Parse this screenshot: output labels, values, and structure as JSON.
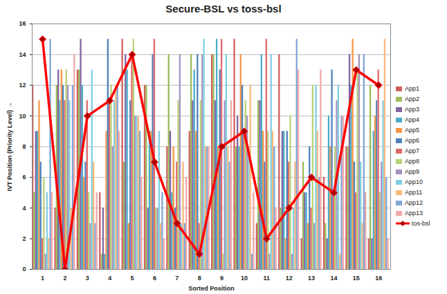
{
  "chart_data": {
    "type": "bar",
    "title": "Secure-BSL vs toss-bsl",
    "x_label": "Sorted Position",
    "y_label": "IVT Position (Priority Level)",
    "categories": [
      "1",
      "2",
      "3",
      "4",
      "5",
      "6",
      "7",
      "8",
      "9",
      "10",
      "11",
      "12",
      "13",
      "14",
      "15",
      "16"
    ],
    "ylim": [
      0,
      16
    ],
    "yticks": [
      0,
      2,
      4,
      6,
      8,
      10,
      12,
      14,
      16
    ],
    "grid": true,
    "legend": "right",
    "series": [
      {
        "name": "App1",
        "color": "#d0605e",
        "values": [
          12,
          4,
          13,
          5,
          15,
          12,
          8,
          9,
          14,
          15,
          3,
          14,
          2,
          6,
          8,
          2
        ]
      },
      {
        "name": "App2",
        "color": "#9bbb59",
        "values": [
          5,
          12,
          13,
          1,
          7,
          12,
          14,
          14,
          14,
          8,
          11,
          4,
          7,
          3,
          8,
          12
        ]
      },
      {
        "name": "App3",
        "color": "#8064a2",
        "values": [
          9,
          13,
          15,
          4,
          14,
          4,
          9,
          11,
          11,
          10,
          11,
          9,
          5,
          2,
          14,
          2
        ]
      },
      {
        "name": "App4",
        "color": "#4bacc6",
        "values": [
          9,
          11,
          12,
          1,
          13,
          9,
          5,
          13,
          15,
          8,
          14,
          9,
          5,
          10,
          12,
          9
        ]
      },
      {
        "name": "App5",
        "color": "#f79646",
        "values": [
          11,
          13,
          6,
          9,
          3,
          9,
          8,
          9,
          8,
          14,
          9,
          2,
          3,
          8,
          15,
          10
        ]
      },
      {
        "name": "App6",
        "color": "#4f81bd",
        "values": [
          7,
          12,
          7,
          15,
          11,
          14,
          4,
          14,
          13,
          12,
          7,
          9,
          8,
          13,
          7,
          11
        ]
      },
      {
        "name": "App7",
        "color": "#e06a6a",
        "values": [
          2,
          11,
          11,
          11,
          14,
          15,
          7,
          3,
          15,
          9,
          15,
          7,
          4,
          5,
          5,
          13
        ]
      },
      {
        "name": "App8",
        "color": "#b8d278",
        "values": [
          6,
          13,
          5,
          12,
          15,
          4,
          11,
          11,
          1,
          11,
          9,
          10,
          12,
          8,
          13,
          5
        ]
      },
      {
        "name": "App9",
        "color": "#a592c0",
        "values": [
          1,
          12,
          3,
          8,
          10,
          4,
          14,
          14,
          11,
          10,
          1,
          1,
          3,
          11,
          14,
          7
        ]
      },
      {
        "name": "App10",
        "color": "#7fcfe0",
        "values": [
          5,
          11,
          13,
          11,
          10,
          9,
          3,
          15,
          14,
          8,
          14,
          4,
          12,
          12,
          7,
          11
        ]
      },
      {
        "name": "App11",
        "color": "#fab87a",
        "values": [
          2,
          4,
          7,
          12,
          10,
          3,
          7,
          8,
          8,
          12,
          9,
          7,
          9,
          1,
          3,
          15
        ]
      },
      {
        "name": "App12",
        "color": "#7fa6d8",
        "values": [
          15,
          12,
          3,
          12,
          9,
          5,
          3,
          8,
          7,
          1,
          8,
          15,
          6,
          10,
          14,
          6
        ]
      },
      {
        "name": "App13",
        "color": "#f0a8a8",
        "values": [
          5,
          14,
          5,
          9,
          6,
          2,
          6,
          8,
          11,
          5,
          4,
          13,
          13,
          10,
          5,
          2
        ]
      },
      {
        "name": "tos-bsl",
        "type": "line",
        "color": "#ff0000",
        "marker": "diamond",
        "line_style": "solid",
        "values": [
          15,
          0,
          10,
          11,
          14,
          7,
          3,
          1,
          8,
          9,
          2,
          4,
          6,
          5,
          13,
          12
        ]
      }
    ]
  }
}
